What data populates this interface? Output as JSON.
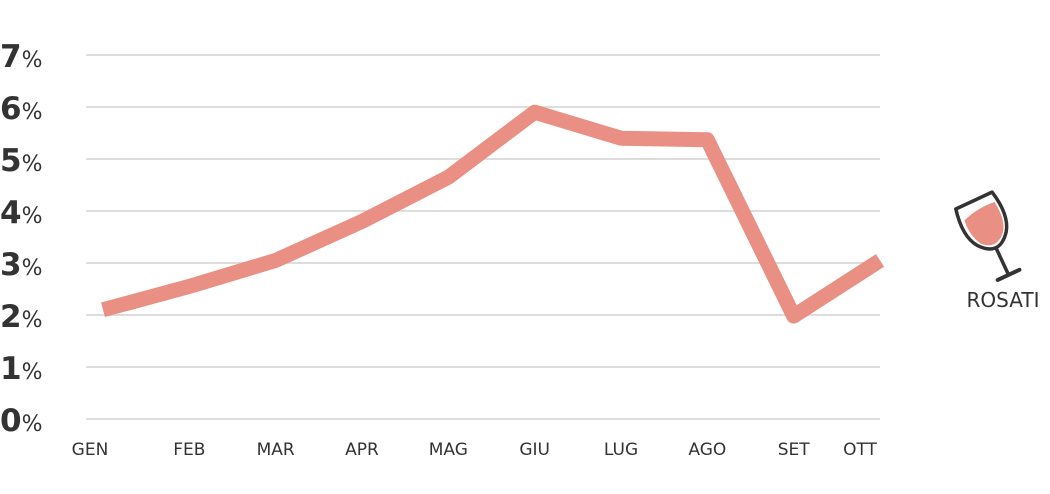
{
  "chart_data": {
    "type": "line",
    "categories": [
      "GEN",
      "FEB",
      "MAR",
      "APR",
      "MAG",
      "GIU",
      "LUG",
      "AGO",
      "SET",
      "OTT"
    ],
    "series": [
      {
        "name": "ROSATI",
        "values": [
          2.1,
          2.55,
          3.05,
          3.8,
          4.65,
          5.9,
          5.4,
          5.37,
          1.98,
          3.05
        ],
        "color": "#e98f84"
      }
    ],
    "yticks": [
      "0%",
      "1%",
      "2%",
      "3%",
      "4%",
      "5%",
      "6%",
      "7%"
    ],
    "ylim": [
      0,
      7
    ],
    "grid": true,
    "legend": {
      "label": "ROSATI",
      "icon": "wine-glass-icon",
      "placement": "right"
    },
    "colors": {
      "line": "#e98f84",
      "grid": "#dddddd",
      "text": "#333333"
    }
  }
}
